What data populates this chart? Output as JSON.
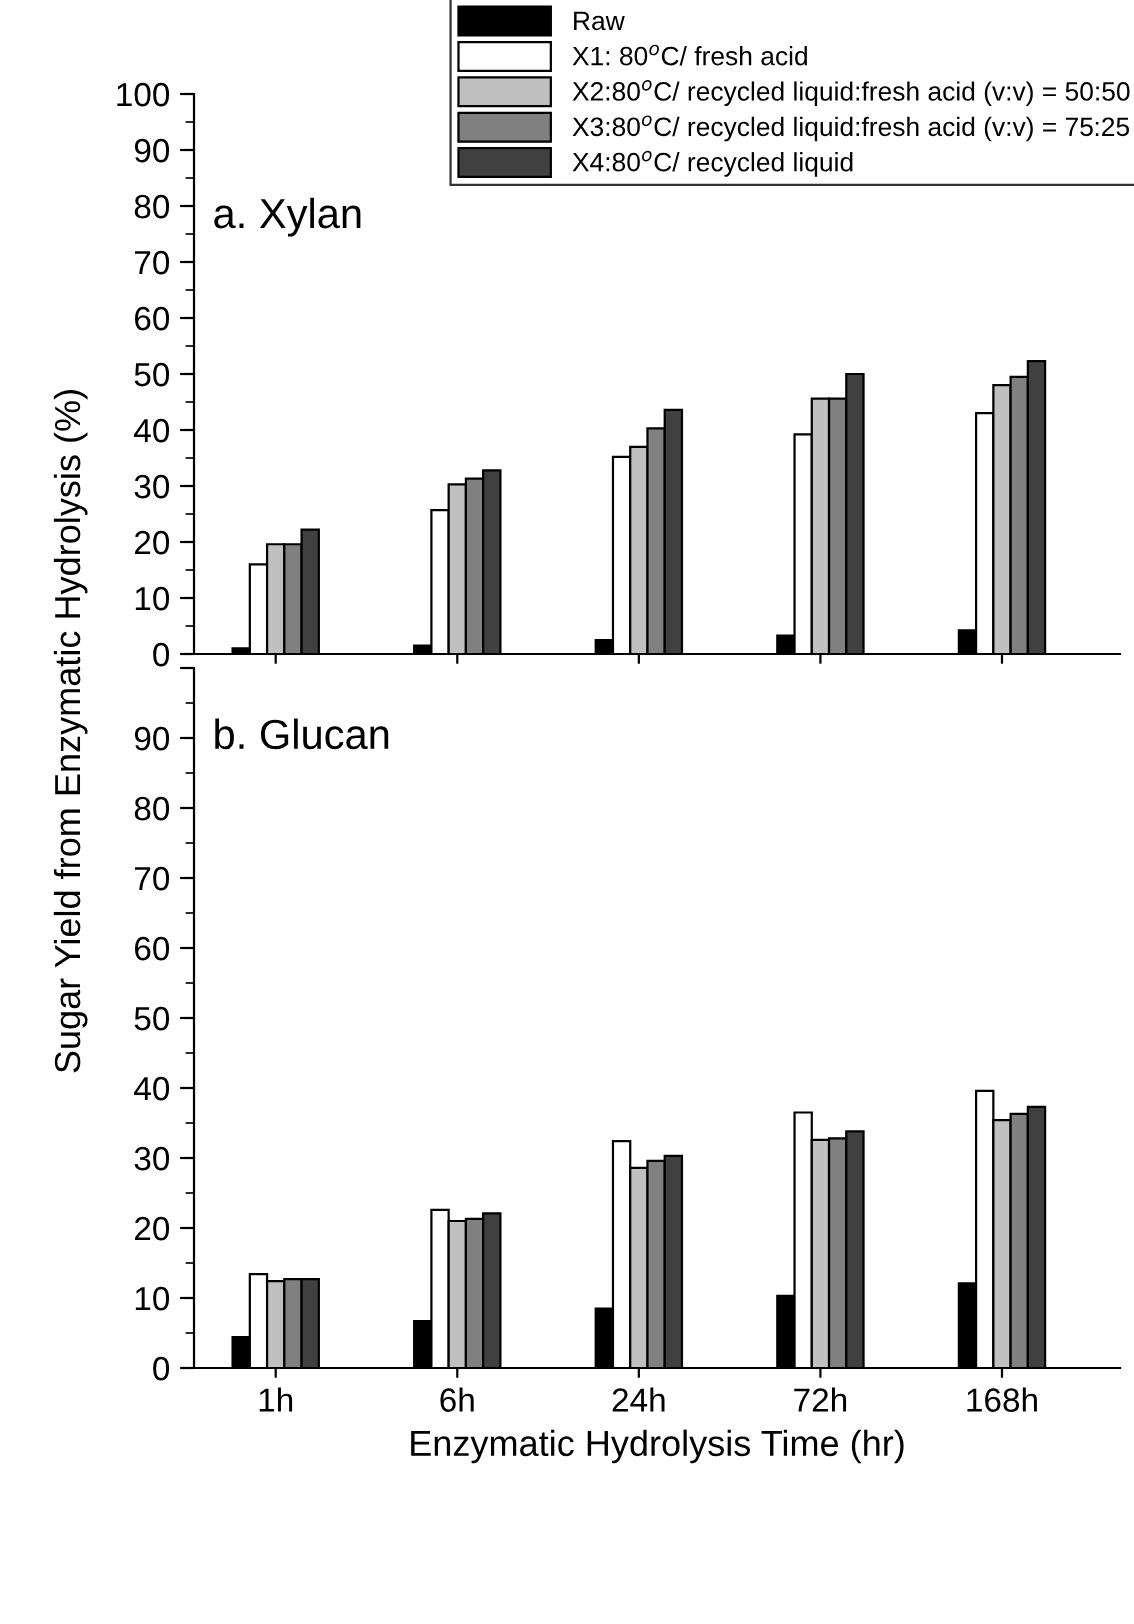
{
  "chart_data": [
    {
      "type": "bar",
      "ylabel": "Sugar Yield from Enzymatic Hydrolysis (%)",
      "categories": [
        null,
        null,
        null,
        null,
        null
      ],
      "ylim": [
        0,
        100
      ],
      "yticks": [
        0,
        10,
        20,
        30,
        40,
        50,
        60,
        70,
        80,
        90,
        100
      ],
      "tick_labels": "y",
      "legend": "top right",
      "grid": false,
      "annotations": [
        "a. Xylan"
      ],
      "series": [
        {
          "name": "Raw",
          "color": "#000000",
          "values": [
            1.0,
            1.5,
            2.5,
            3.3,
            4.2
          ]
        },
        {
          "name": "X1: 80$^{o}$C/ fresh acid",
          "color": "#ffffff",
          "values": [
            16.0,
            25.7,
            35.2,
            39.2,
            43.0
          ]
        },
        {
          "name": "X2:80$^{o}$C/ recycled liquid:fresh acid (v:v) = 50:50",
          "color": "#c0c0c0",
          "values": [
            19.6,
            30.3,
            37.0,
            45.6,
            48.0
          ]
        },
        {
          "name": "X3:80$^{o}$C/ recycled liquid:fresh acid (v:v) = 75:25",
          "color": "#808080",
          "values": [
            19.6,
            31.3,
            40.3,
            45.6,
            49.5
          ]
        },
        {
          "name": "X4:80$^{o}$C/ recycled liquid",
          "color": "#404040",
          "values": [
            22.2,
            32.8,
            43.6,
            50.0,
            52.3
          ]
        }
      ]
    },
    {
      "type": "bar",
      "xlabel": "Enzymatic Hydrolysis Time (hr)",
      "categories": [
        "1h",
        "6h",
        "24h",
        "72h",
        "168h"
      ],
      "ylim": [
        0,
        100
      ],
      "yticks": [
        0,
        10,
        20,
        30,
        40,
        50,
        60,
        70,
        80,
        90,
        {
          "value": 100,
          "label": null
        }
      ],
      "grid": false,
      "annotations": [
        "b. Glucan"
      ],
      "series": [
        {
          "color": "#000000",
          "values": [
            4.4,
            6.7,
            8.5,
            10.3,
            12.1
          ]
        },
        {
          "color": "#ffffff",
          "values": [
            13.4,
            22.6,
            32.4,
            36.5,
            39.6
          ]
        },
        {
          "color": "#c0c0c0",
          "values": [
            12.4,
            21.0,
            28.6,
            32.6,
            35.4
          ]
        },
        {
          "color": "#808080",
          "values": [
            12.7,
            21.3,
            29.6,
            32.8,
            36.3
          ]
        },
        {
          "color": "#404040",
          "values": [
            12.7,
            22.1,
            30.3,
            33.8,
            37.3
          ]
        }
      ]
    }
  ]
}
